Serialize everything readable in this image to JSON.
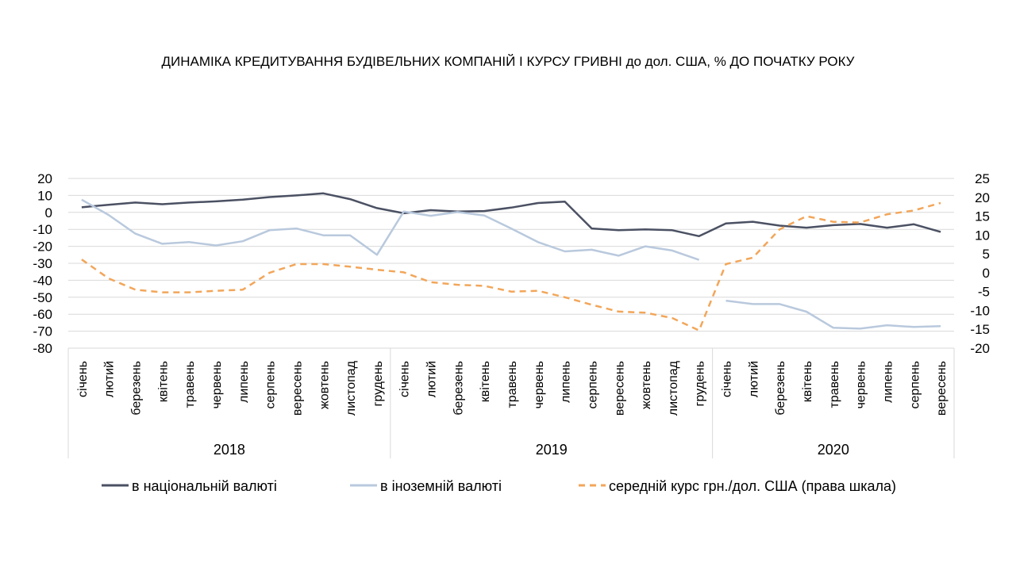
{
  "chart_data": {
    "type": "line",
    "title": "ДИНАМІКА КРЕДИТУВАННЯ БУДІВЕЛЬНИХ КОМПАНІЙ І КУРСУ ГРИВНІ до дол. США, % ДО ПОЧАТКУ РОКУ",
    "left_axis": {
      "ylim": [
        -80,
        20
      ],
      "ticks": [
        20,
        10,
        0,
        -10,
        -20,
        -30,
        -40,
        -50,
        -60,
        -70,
        -80
      ]
    },
    "right_axis": {
      "ylim": [
        -20,
        25
      ],
      "ticks": [
        25,
        20,
        15,
        10,
        5,
        0,
        -5,
        -10,
        -15,
        -20
      ]
    },
    "grid": true,
    "legend_position": "bottom",
    "groups": [
      {
        "year": "2018",
        "months": [
          "січень",
          "лютий",
          "березень",
          "квітень",
          "травень",
          "червень",
          "липень",
          "серпень",
          "вересень",
          "жовтень",
          "листопад",
          "грудень"
        ]
      },
      {
        "year": "2019",
        "months": [
          "січень",
          "лютий",
          "березень",
          "квітень",
          "травень",
          "червень",
          "липень",
          "серпень",
          "вересень",
          "жовтень",
          "листопад",
          "грудень"
        ]
      },
      {
        "year": "2020",
        "months": [
          "січень",
          "лютий",
          "березень",
          "квітень",
          "травень",
          "червень",
          "липень",
          "серпень",
          "вересень"
        ]
      }
    ],
    "series": [
      {
        "name": "в національній валюті",
        "axis": "left",
        "color": "#4b5163",
        "style": "solid",
        "values": [
          3,
          4.5,
          5.8,
          4.8,
          5.8,
          6.5,
          7.5,
          9,
          10,
          11.2,
          7.8,
          2.5,
          -0.5,
          1.3,
          0.5,
          0.8,
          2.8,
          5.5,
          6.3,
          -9.5,
          -10.5,
          -10,
          -10.5,
          -14,
          -6.5,
          -5.5,
          -7.8,
          -9,
          -7.5,
          -6.8,
          -9,
          -7,
          -11.5
        ]
      },
      {
        "name": "в іноземній валюті",
        "axis": "left",
        "color": "#b9c9dd",
        "style": "solid",
        "values": [
          7.5,
          -1.5,
          -12.5,
          -18.5,
          -17.5,
          -19.5,
          -17,
          -10.5,
          -9.5,
          -13.5,
          -13.5,
          -25,
          0.5,
          -2,
          0.2,
          -1.8,
          -9.5,
          -17.5,
          -23,
          -22,
          -25.5,
          -20,
          -22.5,
          -28,
          null,
          null,
          null,
          null,
          null,
          null,
          null,
          null,
          null
        ]
      },
      {
        "name": "in-foreign-2020-segment",
        "axis": "left",
        "color": "#b9c9dd",
        "style": "solid",
        "legend": false,
        "values": [
          null,
          null,
          null,
          null,
          null,
          null,
          null,
          null,
          null,
          null,
          null,
          null,
          null,
          null,
          null,
          null,
          null,
          null,
          null,
          null,
          null,
          null,
          null,
          null,
          -52,
          -54,
          -54,
          -58.5,
          -68,
          -68.5,
          -66.5,
          -67.5,
          -67
        ]
      },
      {
        "name": "середній курс грн./дол. США (права шкала)",
        "axis": "right",
        "color": "#f2a65a",
        "style": "dashed",
        "values": [
          3.5,
          -1.5,
          -4.5,
          -5.2,
          -5.2,
          -4.8,
          -4.5,
          0,
          2.3,
          2.3,
          1.6,
          0.8,
          0.1,
          -2.5,
          -3.2,
          -3.5,
          -5,
          -4.8,
          -6.5,
          -8.5,
          -10.3,
          -10.6,
          -12,
          -15.3,
          2.3,
          4,
          11.5,
          15,
          13.5,
          13.3,
          15.5,
          16.5,
          18.5
        ]
      }
    ]
  }
}
